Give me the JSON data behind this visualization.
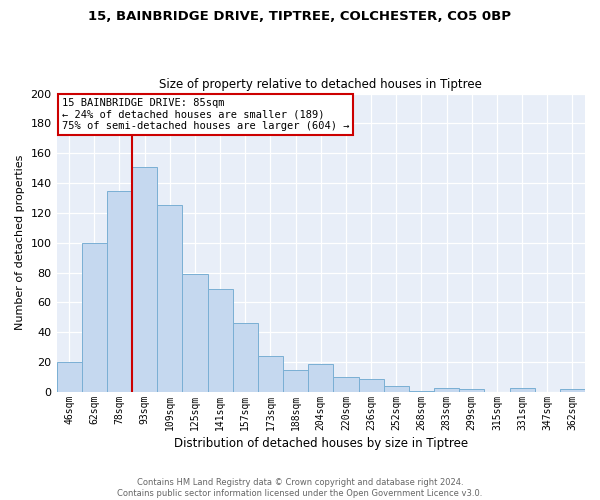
{
  "title_line1": "15, BAINBRIDGE DRIVE, TIPTREE, COLCHESTER, CO5 0BP",
  "title_line2": "Size of property relative to detached houses in Tiptree",
  "xlabel": "Distribution of detached houses by size in Tiptree",
  "ylabel": "Number of detached properties",
  "bar_labels": [
    "46sqm",
    "62sqm",
    "78sqm",
    "93sqm",
    "109sqm",
    "125sqm",
    "141sqm",
    "157sqm",
    "173sqm",
    "188sqm",
    "204sqm",
    "220sqm",
    "236sqm",
    "252sqm",
    "268sqm",
    "283sqm",
    "299sqm",
    "315sqm",
    "331sqm",
    "347sqm",
    "362sqm"
  ],
  "bar_heights": [
    20,
    100,
    135,
    151,
    125,
    79,
    69,
    46,
    24,
    15,
    19,
    10,
    9,
    4,
    1,
    3,
    2,
    0,
    3,
    0,
    2
  ],
  "bar_color": "#c5d8ef",
  "bar_edge_color": "#7aafd4",
  "vline_color": "#cc0000",
  "annotation_title": "15 BAINBRIDGE DRIVE: 85sqm",
  "annotation_line1": "← 24% of detached houses are smaller (189)",
  "annotation_line2": "75% of semi-detached houses are larger (604) →",
  "annotation_box_color": "#ffffff",
  "annotation_box_edge": "#cc0000",
  "bg_color": "#e8eef8",
  "grid_color": "#ffffff",
  "ylim": [
    0,
    200
  ],
  "yticks": [
    0,
    20,
    40,
    60,
    80,
    100,
    120,
    140,
    160,
    180,
    200
  ],
  "footer_line1": "Contains HM Land Registry data © Crown copyright and database right 2024.",
  "footer_line2": "Contains public sector information licensed under the Open Government Licence v3.0."
}
